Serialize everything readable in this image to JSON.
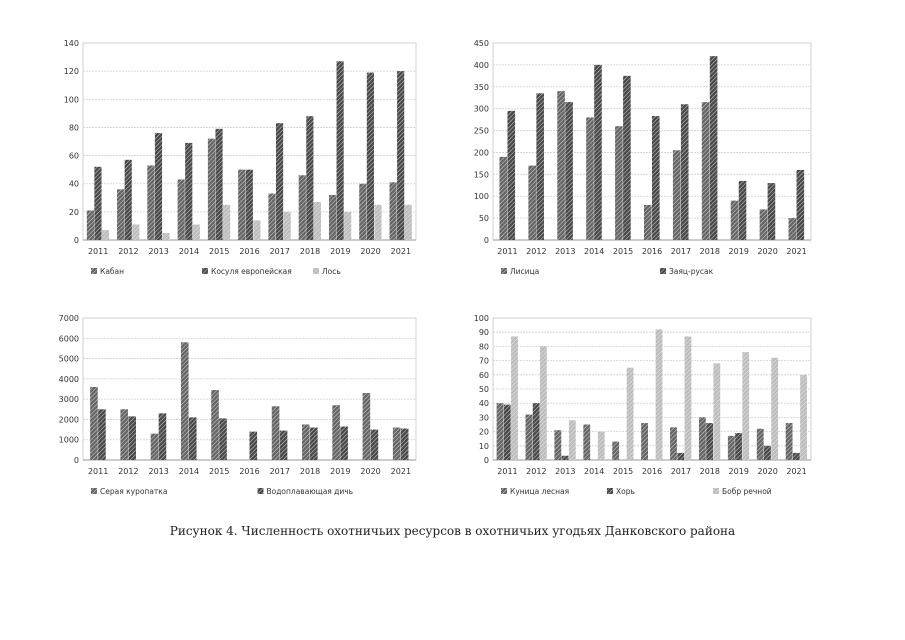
{
  "colors": {
    "dark": "#4a4a4a",
    "mid": "#666666",
    "light": "#bdbdbd",
    "grid": "#d0d0d0",
    "axis": "#9a9a9a",
    "text": "#333333"
  },
  "figure_caption": "Рисунок 4. Численность охотничьих ресурсов в охотничьих угодьях Данковского района",
  "chart_data": [
    {
      "type": "bar",
      "categories": [
        "2011",
        "2012",
        "2013",
        "2014",
        "2015",
        "2016",
        "2017",
        "2018",
        "2019",
        "2020",
        "2021"
      ],
      "ylim": [
        0,
        140
      ],
      "yticks": [
        "0",
        "20",
        "40",
        "60",
        "80",
        "100",
        "120",
        "140"
      ],
      "series": [
        {
          "name": "Кабан",
          "values": [
            21,
            36,
            53,
            43,
            72,
            50,
            33,
            46,
            32,
            40,
            41
          ]
        },
        {
          "name": "Косуля европейская",
          "values": [
            52,
            57,
            76,
            69,
            79,
            50,
            83,
            88,
            127,
            119,
            120
          ]
        },
        {
          "name": "Лось",
          "values": [
            7,
            11,
            5,
            11,
            25,
            14,
            20,
            27,
            20,
            25,
            25
          ]
        }
      ],
      "legend": [
        "Кабан",
        "Косуля европейская",
        "Лось"
      ]
    },
    {
      "type": "bar",
      "categories": [
        "2011",
        "2012",
        "2013",
        "2014",
        "2015",
        "2016",
        "2017",
        "2018",
        "2019",
        "2020",
        "2021"
      ],
      "ylim": [
        0,
        450
      ],
      "yticks": [
        "0",
        "50",
        "100",
        "150",
        "200",
        "250",
        "300",
        "350",
        "400",
        "450"
      ],
      "series": [
        {
          "name": "Лисица",
          "values": [
            190,
            170,
            340,
            280,
            260,
            80,
            205,
            315,
            90,
            70,
            50
          ]
        },
        {
          "name": "Заяц-русак",
          "values": [
            295,
            335,
            315,
            400,
            375,
            283,
            310,
            420,
            135,
            130,
            160
          ]
        }
      ],
      "legend": [
        "Лисица",
        "Заяц-русак"
      ]
    },
    {
      "type": "bar",
      "categories": [
        "2011",
        "2012",
        "2013",
        "2014",
        "2015",
        "2016",
        "2017",
        "2018",
        "2019",
        "2020",
        "2021"
      ],
      "ylim": [
        0,
        7000
      ],
      "yticks": [
        "0",
        "1000",
        "2000",
        "3000",
        "4000",
        "5000",
        "6000",
        "7000"
      ],
      "series": [
        {
          "name": "Серая куропатка",
          "values": [
            3600,
            2500,
            1300,
            5800,
            3450,
            0,
            2650,
            1750,
            2700,
            3300,
            1600
          ]
        },
        {
          "name": "Водоплавающая дичь",
          "values": [
            2500,
            2150,
            2300,
            2100,
            2050,
            1400,
            1450,
            1600,
            1650,
            1500,
            1550
          ]
        }
      ],
      "legend": [
        "Серая куропатка",
        "Водоплавающая дичь"
      ]
    },
    {
      "type": "bar",
      "categories": [
        "2011",
        "2012",
        "2013",
        "2014",
        "2015",
        "2016",
        "2017",
        "2018",
        "2019",
        "2020",
        "2021"
      ],
      "ylim": [
        0,
        100
      ],
      "yticks": [
        "0",
        "10",
        "20",
        "30",
        "40",
        "50",
        "60",
        "70",
        "80",
        "90",
        "100"
      ],
      "series": [
        {
          "name": "Куница лесная",
          "values": [
            40,
            32,
            21,
            25,
            13,
            26,
            23,
            30,
            17,
            22,
            26
          ]
        },
        {
          "name": "Хорь",
          "values": [
            39,
            40,
            3,
            0,
            0,
            0,
            5,
            26,
            19,
            10,
            5
          ]
        },
        {
          "name": "Бобр речной",
          "values": [
            87,
            80,
            28,
            20,
            65,
            92,
            87,
            68,
            76,
            72,
            60
          ]
        }
      ],
      "legend": [
        "Куница лесная",
        "Хорь",
        "Бобр речной"
      ]
    }
  ]
}
